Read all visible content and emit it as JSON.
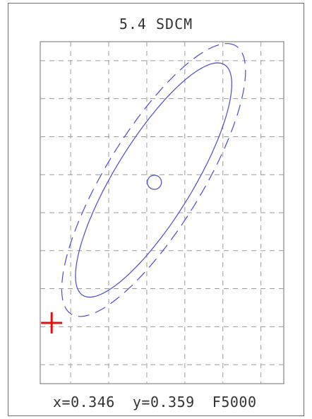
{
  "title": "5.4 SDCM",
  "readout": {
    "x_text": "x=0.346",
    "y_text": "y=0.359",
    "source_text": "F5000"
  },
  "colors": {
    "ellipse": "#4a4ad0",
    "marker": "#e01010",
    "grid": "#9a9a9a",
    "frame": "#6e6e6e",
    "text": "#333333"
  },
  "chart_data": {
    "type": "scatter",
    "title": "5.4 SDCM",
    "grid": true,
    "x_range": [
      0.331,
      0.363
    ],
    "y_range": [
      0.3325,
      0.3775
    ],
    "measured_point": {
      "x": 0.346,
      "y": 0.359,
      "marker": "circle"
    },
    "reference_point": {
      "x": 0.3325,
      "y": 0.3405,
      "marker": "cross"
    },
    "ellipses": [
      {
        "name": "",
        "style": "solid",
        "center": [
          0.3459,
          0.3593
        ],
        "semi_major": 0.0178,
        "semi_minor": 0.0051,
        "angle_deg": 58.5
      },
      {
        "name": "",
        "style": "dashed",
        "center": [
          0.3459,
          0.3593
        ],
        "semi_major": 0.0207,
        "semi_minor": 0.0063,
        "angle_deg": 58.5
      }
    ]
  }
}
